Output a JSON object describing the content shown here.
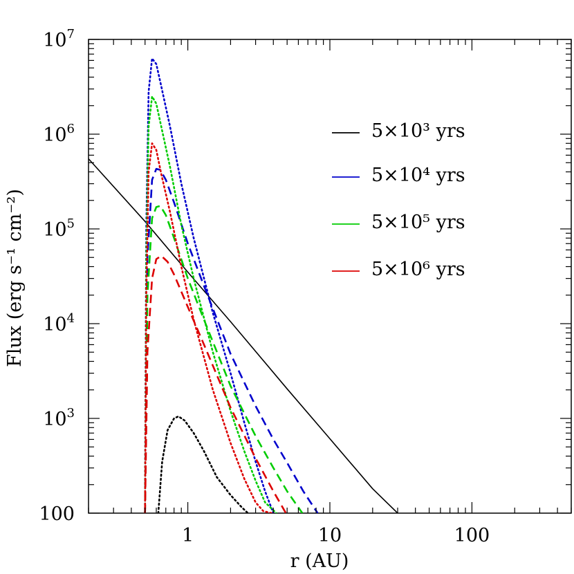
{
  "chart_data": {
    "type": "line",
    "x_scale": "log",
    "y_scale": "log",
    "xlim": [
      0.2,
      500
    ],
    "ylim": [
      100,
      10000000
    ],
    "xlabel": "r (AU)",
    "ylabel": "Flux (erg s⁻¹ cm⁻²)",
    "x_ticks": [
      {
        "value": 1,
        "label": "1"
      },
      {
        "value": 10,
        "label": "10"
      },
      {
        "value": 100,
        "label": "100"
      }
    ],
    "y_ticks": [
      {
        "value": 100,
        "base": "100",
        "exp": ""
      },
      {
        "value": 1000,
        "base": "10",
        "exp": "3"
      },
      {
        "value": 10000,
        "base": "10",
        "exp": "4"
      },
      {
        "value": 100000,
        "base": "10",
        "exp": "5"
      },
      {
        "value": 1000000,
        "base": "10",
        "exp": "6"
      },
      {
        "value": 10000000,
        "base": "10",
        "exp": "7"
      }
    ],
    "grid": false,
    "legend": {
      "position": "top-right",
      "entries": [
        {
          "label": "5×10³ yrs",
          "color": "#000000"
        },
        {
          "label": "5×10⁴ yrs",
          "color": "#0000cc"
        },
        {
          "label": "5×10⁵ yrs",
          "color": "#00cc00"
        },
        {
          "label": "5×10⁶ yrs",
          "color": "#dd0000"
        }
      ]
    },
    "series": [
      {
        "id": "solid-black",
        "color": "#000000",
        "style": "solid",
        "x": [
          0.2,
          0.5,
          1,
          2,
          5,
          10,
          20,
          30
        ],
        "y": [
          550000,
          120000,
          35000,
          10500,
          2050,
          610,
          181,
          100
        ]
      },
      {
        "id": "dotted-black",
        "color": "#000000",
        "style": "dotted",
        "x": [
          0.62,
          0.66,
          0.72,
          0.8,
          0.86,
          0.95,
          1.1,
          1.3,
          1.6,
          2.0,
          2.4,
          2.65
        ],
        "y": [
          100,
          350,
          750,
          1000,
          1050,
          950,
          700,
          450,
          240,
          155,
          115,
          100
        ]
      },
      {
        "id": "dotted-blue",
        "color": "#0000cc",
        "style": "dotted",
        "x": [
          0.5,
          0.51,
          0.53,
          0.56,
          0.6,
          0.65,
          0.75,
          0.9,
          1.1,
          1.5,
          2.0,
          2.5,
          3.0,
          3.5,
          4.0
        ],
        "y": [
          100,
          100000,
          2800000,
          6300000,
          5500000,
          3200000,
          1200000,
          300000,
          80000,
          13000,
          3000,
          900,
          350,
          170,
          100
        ]
      },
      {
        "id": "dashed-blue",
        "color": "#0000cc",
        "style": "dashed",
        "x": [
          0.5,
          0.52,
          0.56,
          0.6,
          0.64,
          0.7,
          0.8,
          1.0,
          1.3,
          2.0,
          3.0,
          4.0,
          5.0,
          6.5,
          8.2
        ],
        "y": [
          100,
          50000,
          330000,
          430000,
          420000,
          330000,
          190000,
          70000,
          25000,
          4800,
          1350,
          600,
          340,
          170,
          100
        ]
      },
      {
        "id": "dotted-green",
        "color": "#00cc00",
        "style": "dotted",
        "x": [
          0.5,
          0.51,
          0.53,
          0.56,
          0.6,
          0.65,
          0.75,
          0.9,
          1.1,
          1.5,
          2.0,
          2.5,
          3.0,
          3.5,
          4.2
        ],
        "y": [
          100,
          50000,
          1200000,
          2500000,
          2100000,
          1200000,
          450000,
          110000,
          30000,
          5000,
          1200,
          450,
          220,
          130,
          100
        ]
      },
      {
        "id": "dashed-green",
        "color": "#00cc00",
        "style": "dashed",
        "x": [
          0.5,
          0.52,
          0.56,
          0.6,
          0.64,
          0.7,
          0.8,
          1.0,
          1.3,
          2.0,
          3.0,
          4.0,
          5.0,
          6.4
        ],
        "y": [
          100,
          20000,
          130000,
          170000,
          175000,
          140000,
          80000,
          30000,
          11000,
          2200,
          650,
          300,
          170,
          100
        ]
      },
      {
        "id": "dotted-red",
        "color": "#dd0000",
        "style": "dotted",
        "x": [
          0.5,
          0.51,
          0.53,
          0.56,
          0.6,
          0.65,
          0.75,
          0.9,
          1.1,
          1.5,
          2.0,
          2.5,
          3.0,
          3.4,
          3.9
        ],
        "y": [
          100,
          20000,
          400000,
          800000,
          680000,
          380000,
          150000,
          40000,
          11000,
          2000,
          550,
          230,
          130,
          105,
          100
        ]
      },
      {
        "id": "dashed-red",
        "color": "#dd0000",
        "style": "dashed",
        "x": [
          0.5,
          0.52,
          0.56,
          0.6,
          0.65,
          0.72,
          0.8,
          1.0,
          1.3,
          2.0,
          3.0,
          4.0,
          4.9
        ],
        "y": [
          100,
          5000,
          30000,
          48000,
          52000,
          45000,
          33000,
          15000,
          6000,
          1300,
          380,
          170,
          100
        ]
      }
    ]
  }
}
